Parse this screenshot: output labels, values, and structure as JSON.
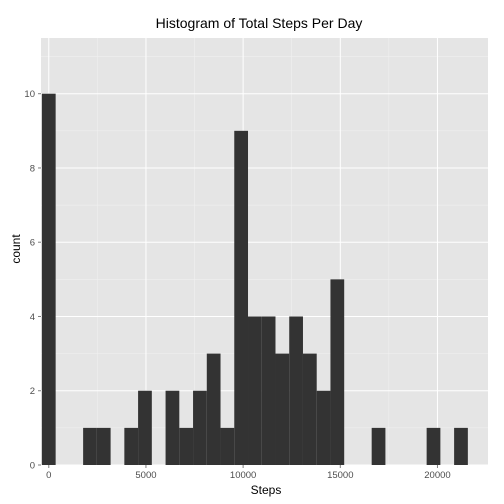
{
  "chart_data": {
    "type": "bar",
    "title": "Histogram of Total Steps Per Day",
    "xlabel": "Steps",
    "ylabel": "count",
    "bin_width": 707,
    "xlim": [
      -400,
      22600
    ],
    "ylim": [
      0,
      11.5
    ],
    "x_ticks": [
      0,
      5000,
      10000,
      15000,
      20000
    ],
    "x_tick_labels": [
      "0",
      "5000",
      "10000",
      "15000",
      "20000"
    ],
    "y_ticks": [
      0,
      2,
      4,
      6,
      8,
      10
    ],
    "y_tick_labels": [
      "0",
      "2",
      "4",
      "6",
      "8",
      "10"
    ],
    "bins": [
      {
        "x": 0,
        "count": 10
      },
      {
        "x": 707,
        "count": 0
      },
      {
        "x": 1414,
        "count": 0
      },
      {
        "x": 2121,
        "count": 1
      },
      {
        "x": 2828,
        "count": 1
      },
      {
        "x": 3535,
        "count": 0
      },
      {
        "x": 4242,
        "count": 1
      },
      {
        "x": 4949,
        "count": 2
      },
      {
        "x": 5656,
        "count": 0
      },
      {
        "x": 6363,
        "count": 2
      },
      {
        "x": 7070,
        "count": 1
      },
      {
        "x": 7777,
        "count": 2
      },
      {
        "x": 8484,
        "count": 3
      },
      {
        "x": 9191,
        "count": 1
      },
      {
        "x": 9898,
        "count": 9
      },
      {
        "x": 10605,
        "count": 4
      },
      {
        "x": 11312,
        "count": 4
      },
      {
        "x": 12019,
        "count": 3
      },
      {
        "x": 12726,
        "count": 4
      },
      {
        "x": 13433,
        "count": 3
      },
      {
        "x": 14140,
        "count": 2
      },
      {
        "x": 14847,
        "count": 5
      },
      {
        "x": 15554,
        "count": 0
      },
      {
        "x": 16261,
        "count": 0
      },
      {
        "x": 16968,
        "count": 1
      },
      {
        "x": 17675,
        "count": 0
      },
      {
        "x": 18382,
        "count": 0
      },
      {
        "x": 19089,
        "count": 0
      },
      {
        "x": 19796,
        "count": 1
      },
      {
        "x": 20503,
        "count": 0
      },
      {
        "x": 21210,
        "count": 1
      }
    ],
    "grid": true,
    "colors": {
      "panel_background": "#e5e5e5",
      "grid_major": "#ffffff",
      "grid_minor": "#f2f2f2",
      "bar_fill": "#333333",
      "tick_label": "#4d4d4d"
    }
  }
}
